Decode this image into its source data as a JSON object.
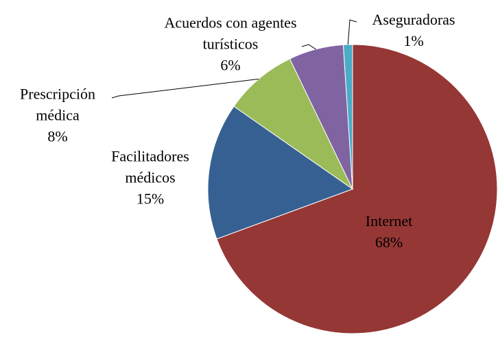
{
  "chart_data": {
    "type": "pie",
    "categories": [
      "Internet",
      "Facilitadores médicos",
      "Prescripción médica",
      "Acuerdos con agentes turísticos",
      "Aseguradoras"
    ],
    "values": [
      68,
      15,
      8,
      6,
      1
    ],
    "value_labels": [
      "68%",
      "15%",
      "8%",
      "6%",
      "1%"
    ],
    "colors": [
      "#953735",
      "#376092",
      "#9bbb59",
      "#8064a2",
      "#4bacc6"
    ]
  }
}
